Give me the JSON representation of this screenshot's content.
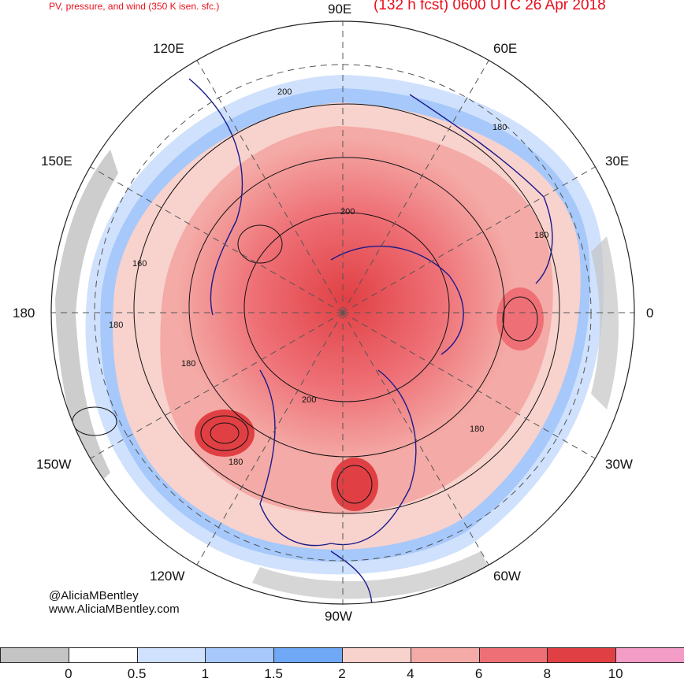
{
  "header": {
    "title": "PV, pressure, and wind (350 K isen. sfc.)",
    "forecast": "(132 h fcst) 0600 UTC 26 Apr 2018"
  },
  "map": {
    "longitude_labels": [
      "90E",
      "60E",
      "30E",
      "0",
      "30W",
      "60W",
      "90W",
      "120W",
      "150W",
      "180",
      "150E",
      "120E"
    ],
    "contour_labels": [
      "200",
      "180",
      "160",
      "180",
      "200",
      "180",
      "200",
      "180",
      "180",
      "180"
    ]
  },
  "credit": {
    "handle": "@AliciaMBentley",
    "website": "www.AliciaMBentley.com"
  },
  "colorbar": {
    "ticks": [
      "0",
      "0.5",
      "1",
      "1.5",
      "2",
      "4",
      "6",
      "8",
      "10"
    ],
    "colors": [
      "#c4c4c4",
      "#ffffff",
      "#cfe1fc",
      "#a6c8fa",
      "#6fa8f5",
      "#f8d2cd",
      "#f4aaa6",
      "#ee7076",
      "#e04044",
      "#f29cc6"
    ]
  }
}
